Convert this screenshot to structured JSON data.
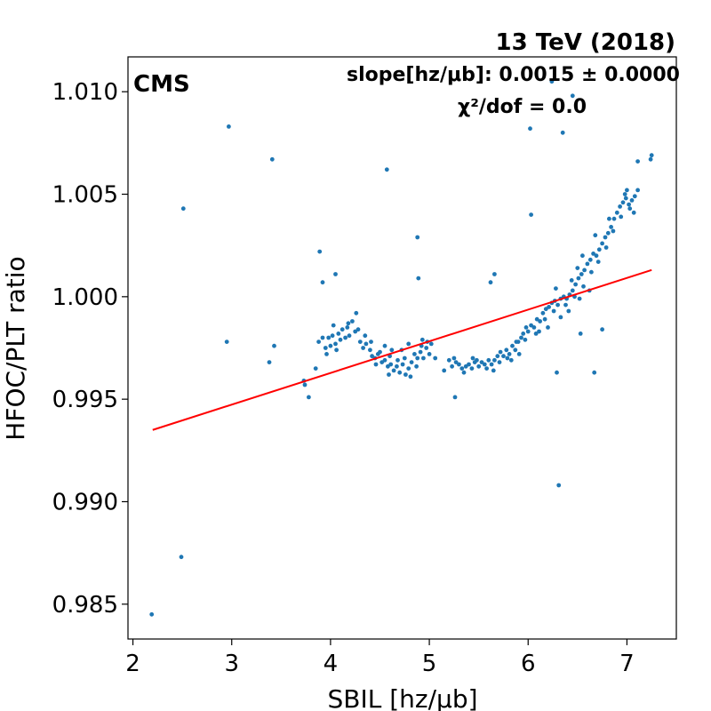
{
  "chart_data": {
    "type": "scatter",
    "title": "13 TeV (2018)",
    "experiment_label": "CMS",
    "annotation_slope": "slope[hz/μb]: 0.0015 ± 0.0000",
    "annotation_chi2": "χ²/dof = 0.0",
    "xlabel": "SBIL [hz/μb]",
    "ylabel": "HFOC/PLT ratio",
    "xlim": [
      1.95,
      7.5
    ],
    "ylim": [
      0.9833,
      1.0117
    ],
    "xticks": [
      2,
      3,
      4,
      5,
      6,
      7
    ],
    "xtick_labels": [
      "2",
      "3",
      "4",
      "5",
      "6",
      "7"
    ],
    "yticks": [
      0.985,
      0.99,
      0.995,
      1.0,
      1.005,
      1.01
    ],
    "ytick_labels": [
      "0.985",
      "0.990",
      "0.995",
      "1.000",
      "1.005",
      "1.010"
    ],
    "grid": false,
    "marker_color": "#1f77b4",
    "fit_color": "#ff0000",
    "fit_line": {
      "x": [
        2.2,
        7.25
      ],
      "y": [
        0.9935,
        1.0013
      ]
    },
    "series": [
      {
        "points": [
          [
            2.19,
            0.9845
          ],
          [
            2.49,
            0.9873
          ],
          [
            2.51,
            1.0043
          ],
          [
            2.95,
            0.9978
          ],
          [
            2.97,
            1.0083
          ],
          [
            3.38,
            0.9968
          ],
          [
            3.41,
            1.0067
          ],
          [
            3.43,
            0.9976
          ],
          [
            3.73,
            0.9959
          ],
          [
            3.74,
            0.9957
          ],
          [
            3.78,
            0.9951
          ],
          [
            3.85,
            0.9965
          ],
          [
            3.89,
            1.0022
          ],
          [
            3.92,
            1.0007
          ],
          [
            4.05,
            1.0011
          ],
          [
            4.57,
            1.0062
          ],
          [
            4.88,
            1.0029
          ],
          [
            4.89,
            1.0009
          ],
          [
            5.26,
            0.9951
          ],
          [
            5.62,
            1.0007
          ],
          [
            5.66,
            1.0011
          ],
          [
            5.88,
            0.9978
          ],
          [
            6.02,
            1.0082
          ],
          [
            6.03,
            1.004
          ],
          [
            6.24,
            1.0105
          ],
          [
            6.29,
            0.9963
          ],
          [
            6.31,
            0.9908
          ],
          [
            6.35,
            1.008
          ],
          [
            6.45,
            1.0098
          ],
          [
            6.53,
            0.9982
          ],
          [
            6.67,
            0.9963
          ],
          [
            6.75,
            0.9984
          ],
          [
            7.11,
            1.0066
          ],
          [
            7.24,
            1.0067
          ],
          [
            7.25,
            1.0069
          ],
          [
            3.88,
            0.9978
          ],
          [
            3.92,
            0.998
          ],
          [
            3.95,
            0.9975
          ],
          [
            3.98,
            0.998
          ],
          [
            4.0,
            0.9976
          ],
          [
            4.02,
            0.9981
          ],
          [
            4.05,
            0.9977
          ],
          [
            4.08,
            0.9982
          ],
          [
            4.1,
            0.9979
          ],
          [
            4.12,
            0.9984
          ],
          [
            4.15,
            0.998
          ],
          [
            4.17,
            0.9985
          ],
          [
            4.19,
            0.9981
          ],
          [
            4.22,
            0.9988
          ],
          [
            4.25,
            0.9983
          ],
          [
            4.28,
            0.9984
          ],
          [
            4.3,
            0.9978
          ],
          [
            4.33,
            0.9975
          ],
          [
            4.36,
            0.9977
          ],
          [
            4.4,
            0.9974
          ],
          [
            4.42,
            0.9971
          ],
          [
            4.45,
            0.997
          ],
          [
            4.48,
            0.9972
          ],
          [
            4.52,
            0.9968
          ],
          [
            4.55,
            0.9969
          ],
          [
            4.58,
            0.9966
          ],
          [
            4.61,
            0.9967
          ],
          [
            4.64,
            0.9964
          ],
          [
            4.67,
            0.9966
          ],
          [
            4.7,
            0.9963
          ],
          [
            4.73,
            0.9967
          ],
          [
            4.76,
            0.9962
          ],
          [
            4.79,
            0.9965
          ],
          [
            4.82,
            0.9968
          ],
          [
            4.85,
            0.9972
          ],
          [
            4.88,
            0.997
          ],
          [
            4.91,
            0.9973
          ],
          [
            4.94,
            0.997
          ],
          [
            4.97,
            0.9975
          ],
          [
            5.0,
            0.9972
          ],
          [
            4.98,
            0.9978
          ],
          [
            4.92,
            0.9976
          ],
          [
            3.96,
            0.9972
          ],
          [
            4.06,
            0.9974
          ],
          [
            4.26,
            0.9992
          ],
          [
            4.18,
            0.9987
          ],
          [
            4.03,
            0.9986
          ],
          [
            4.5,
            0.9973
          ],
          [
            4.6,
            0.9971
          ],
          [
            4.68,
            0.9969
          ],
          [
            4.75,
            0.997
          ],
          [
            4.81,
            0.9961
          ],
          [
            4.87,
            0.9966
          ],
          [
            4.59,
            0.9962
          ],
          [
            4.41,
            0.9978
          ],
          [
            4.55,
            0.9976
          ],
          [
            4.72,
            0.9974
          ],
          [
            4.93,
            0.9979
          ],
          [
            4.46,
            0.9967
          ],
          [
            4.35,
            0.9981
          ],
          [
            5.02,
            0.9977
          ],
          [
            4.79,
            0.9977
          ],
          [
            4.62,
            0.9974
          ],
          [
            5.2,
            0.9969
          ],
          [
            5.23,
            0.9966
          ],
          [
            5.27,
            0.9968
          ],
          [
            5.3,
            0.9967
          ],
          [
            5.33,
            0.9965
          ],
          [
            5.37,
            0.9966
          ],
          [
            5.4,
            0.9967
          ],
          [
            5.43,
            0.9965
          ],
          [
            5.46,
            0.9968
          ],
          [
            5.5,
            0.9966
          ],
          [
            5.53,
            0.9968
          ],
          [
            5.56,
            0.9967
          ],
          [
            5.6,
            0.9969
          ],
          [
            5.63,
            0.9967
          ],
          [
            5.66,
            0.9969
          ],
          [
            5.69,
            0.9971
          ],
          [
            5.72,
            0.9973
          ],
          [
            5.75,
            0.9971
          ],
          [
            5.78,
            0.9974
          ],
          [
            5.81,
            0.9972
          ],
          [
            5.84,
            0.9976
          ],
          [
            5.87,
            0.9974
          ],
          [
            5.9,
            0.9978
          ],
          [
            5.93,
            0.998
          ],
          [
            5.95,
            0.9982
          ],
          [
            5.98,
            0.9985
          ],
          [
            6.0,
            0.9983
          ],
          [
            6.03,
            0.9986
          ],
          [
            6.06,
            0.9985
          ],
          [
            6.09,
            0.9989
          ],
          [
            6.12,
            0.9988
          ],
          [
            6.15,
            0.9992
          ],
          [
            6.18,
            0.9994
          ],
          [
            6.21,
            0.9995
          ],
          [
            6.24,
            0.9997
          ],
          [
            6.27,
            0.9998
          ],
          [
            6.3,
            0.9996
          ],
          [
            6.33,
            0.9999
          ],
          [
            6.36,
            1.0
          ],
          [
            6.39,
            0.9999
          ],
          [
            6.42,
            1.0001
          ],
          [
            6.45,
            1.0003
          ],
          [
            6.48,
            1.0006
          ],
          [
            6.51,
            1.0009
          ],
          [
            6.54,
            1.0011
          ],
          [
            6.57,
            1.0013
          ],
          [
            6.6,
            1.0016
          ],
          [
            6.63,
            1.0018
          ],
          [
            6.66,
            1.0021
          ],
          [
            6.69,
            1.002
          ],
          [
            6.72,
            1.0023
          ],
          [
            6.75,
            1.0026
          ],
          [
            6.78,
            1.0029
          ],
          [
            6.81,
            1.0031
          ],
          [
            6.84,
            1.0034
          ],
          [
            6.87,
            1.0038
          ],
          [
            6.9,
            1.0041
          ],
          [
            6.93,
            1.0044
          ],
          [
            6.96,
            1.0046
          ],
          [
            6.99,
            1.0048
          ],
          [
            7.02,
            1.0045
          ],
          [
            7.05,
            1.0047
          ],
          [
            7.08,
            1.0049
          ],
          [
            7.11,
            1.0052
          ],
          [
            7.0,
            1.0052
          ],
          [
            5.35,
            0.9963
          ],
          [
            5.48,
            0.9969
          ],
          [
            5.58,
            0.9965
          ],
          [
            5.71,
            0.9968
          ],
          [
            5.83,
            0.9969
          ],
          [
            5.97,
            0.9979
          ],
          [
            6.08,
            0.9982
          ],
          [
            6.17,
            0.9989
          ],
          [
            6.26,
            0.9993
          ],
          [
            6.38,
            0.9996
          ],
          [
            6.47,
            1.0
          ],
          [
            6.56,
            1.0005
          ],
          [
            6.64,
            1.0012
          ],
          [
            6.71,
            1.0017
          ],
          [
            6.79,
            1.0024
          ],
          [
            6.86,
            1.0032
          ],
          [
            6.94,
            1.0039
          ],
          [
            7.03,
            1.0043
          ],
          [
            7.07,
            1.0041
          ],
          [
            5.25,
            0.997
          ],
          [
            5.15,
            0.9964
          ],
          [
            5.06,
            0.997
          ],
          [
            6.62,
            1.0003
          ],
          [
            6.52,
            0.9999
          ],
          [
            6.41,
            0.9993
          ],
          [
            6.33,
            0.999
          ],
          [
            6.2,
            0.9985
          ],
          [
            6.11,
            0.9983
          ],
          [
            5.91,
            0.9972
          ],
          [
            5.79,
            0.997
          ],
          [
            6.55,
            1.002
          ],
          [
            6.68,
            1.003
          ],
          [
            6.82,
            1.0038
          ],
          [
            6.98,
            1.005
          ],
          [
            5.65,
            0.9964
          ],
          [
            5.44,
            0.997
          ],
          [
            6.28,
            1.0004
          ],
          [
            6.44,
            1.0008
          ],
          [
            6.5,
            1.0014
          ]
        ]
      }
    ]
  }
}
